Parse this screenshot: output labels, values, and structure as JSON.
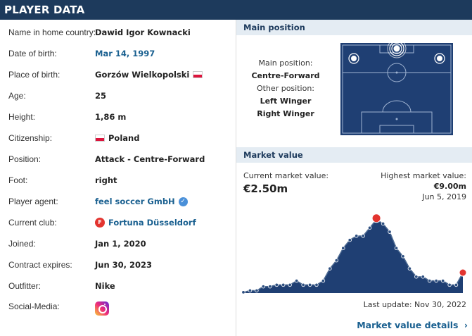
{
  "header": {
    "title": "PLAYER DATA"
  },
  "player": [
    {
      "label": "Name in home country:",
      "value": "Dawid Igor Kownacki"
    },
    {
      "label": "Date of birth:",
      "value": "Mar 14, 1997"
    },
    {
      "label": "Place of birth:",
      "value": "Gorzów Wielkopolski"
    },
    {
      "label": "Age:",
      "value": "25"
    },
    {
      "label": "Height:",
      "value": "1,86 m"
    },
    {
      "label": "Citizenship:",
      "value": "Poland"
    },
    {
      "label": "Position:",
      "value": "Attack - Centre-Forward"
    },
    {
      "label": "Foot:",
      "value": "right"
    },
    {
      "label": "Player agent:",
      "value": "feel soccer GmbH"
    },
    {
      "label": "Current club:",
      "value": "Fortuna Düsseldorf"
    },
    {
      "label": "Joined:",
      "value": "Jan 1, 2020"
    },
    {
      "label": "Contract expires:",
      "value": "Jun 30, 2023"
    },
    {
      "label": "Outfitter:",
      "value": "Nike"
    },
    {
      "label": "Social-Media:",
      "value": ""
    }
  ],
  "position": {
    "heading": "Main position",
    "main_label": "Main position:",
    "main_value": "Centre-Forward",
    "other_label": "Other position:",
    "other_values": [
      "Left Winger",
      "Right Winger"
    ]
  },
  "market": {
    "heading": "Market value",
    "current_label": "Current market value:",
    "current_value": "€2.50m",
    "highest_label": "Highest market value:",
    "highest_value": "€9.00m",
    "highest_date": "Jun 5, 2019",
    "last_update": "Last update: Nov 30, 2022",
    "details_link": "Market value details",
    "chevron": "›"
  },
  "colors": {
    "navy": "#1d3a5c",
    "pitch": "#1f3f73",
    "area": "#1f3f73",
    "link": "#1a6090"
  },
  "chart_data": {
    "type": "area",
    "values": [
      0.1,
      0.3,
      0.3,
      0.8,
      0.8,
      1.0,
      1.0,
      1.0,
      1.5,
      1.0,
      1.0,
      1.0,
      1.5,
      3.0,
      4.0,
      5.5,
      6.5,
      7.0,
      7.0,
      8.0,
      9.0,
      8.5,
      7.5,
      5.5,
      4.5,
      3.0,
      2.0,
      2.0,
      1.5,
      1.5,
      1.5,
      1.0,
      1.0,
      2.5
    ]
  }
}
